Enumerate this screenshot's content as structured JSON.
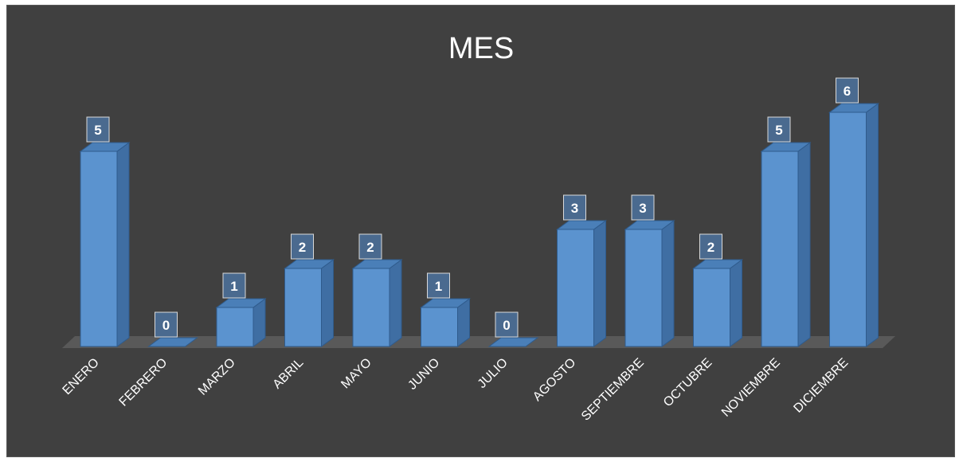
{
  "chart_data": {
    "type": "bar",
    "title": "MES",
    "categories": [
      "ENERO",
      "FEBRERO",
      "MARZO",
      "ABRIL",
      "MAYO",
      "JUNIO",
      "JULIO",
      "AGOSTO",
      "SEPTIEMBRE",
      "OCTUBRE",
      "NOVIEMBRE",
      "DICIEMBRE"
    ],
    "values": [
      5,
      0,
      1,
      2,
      2,
      1,
      0,
      3,
      3,
      2,
      5,
      6
    ],
    "ylim": [
      0,
      6
    ],
    "grid": false,
    "legend": "none"
  },
  "colors": {
    "background": "#404040",
    "bar_front": "#5b93cf",
    "bar_side": "#3f6ea3",
    "bar_top": "#4a7fb8",
    "floor": "#595959",
    "label_border": "#d9d9d9"
  }
}
